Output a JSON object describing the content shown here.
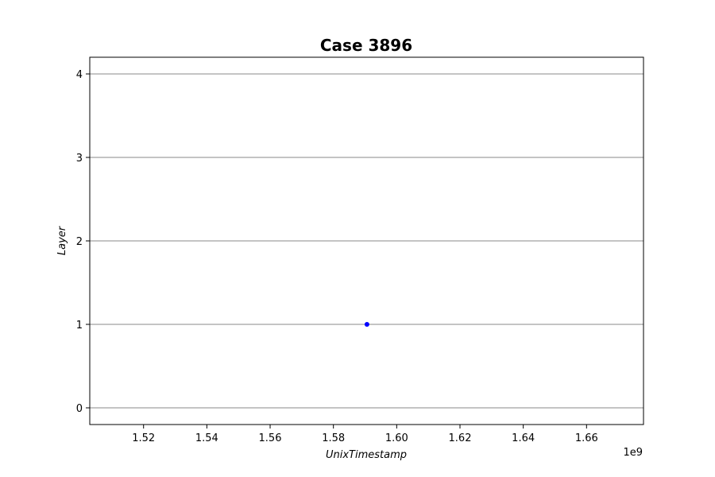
{
  "chart_data": {
    "type": "scatter",
    "title": "Case 3896",
    "xlabel": "UnixTimestamp",
    "ylabel": "Layer",
    "x_offset_label": "1e9",
    "xlim": [
      1503000000,
      1678000000
    ],
    "ylim": [
      -0.2,
      4.2
    ],
    "x_ticks": [
      1520000000,
      1540000000,
      1560000000,
      1580000000,
      1600000000,
      1620000000,
      1640000000,
      1660000000
    ],
    "x_tick_labels": [
      "1.52",
      "1.54",
      "1.56",
      "1.58",
      "1.60",
      "1.62",
      "1.64",
      "1.66"
    ],
    "y_ticks": [
      0,
      1,
      2,
      3,
      4
    ],
    "y_tick_labels": [
      "0",
      "1",
      "2",
      "3",
      "4"
    ],
    "grid": "horizontal",
    "colors": {
      "point": "#0000ff",
      "grid": "#b0b0b0",
      "axes": "#000000"
    },
    "series": [
      {
        "x": [
          1590600000
        ],
        "y": [
          1
        ]
      }
    ]
  }
}
